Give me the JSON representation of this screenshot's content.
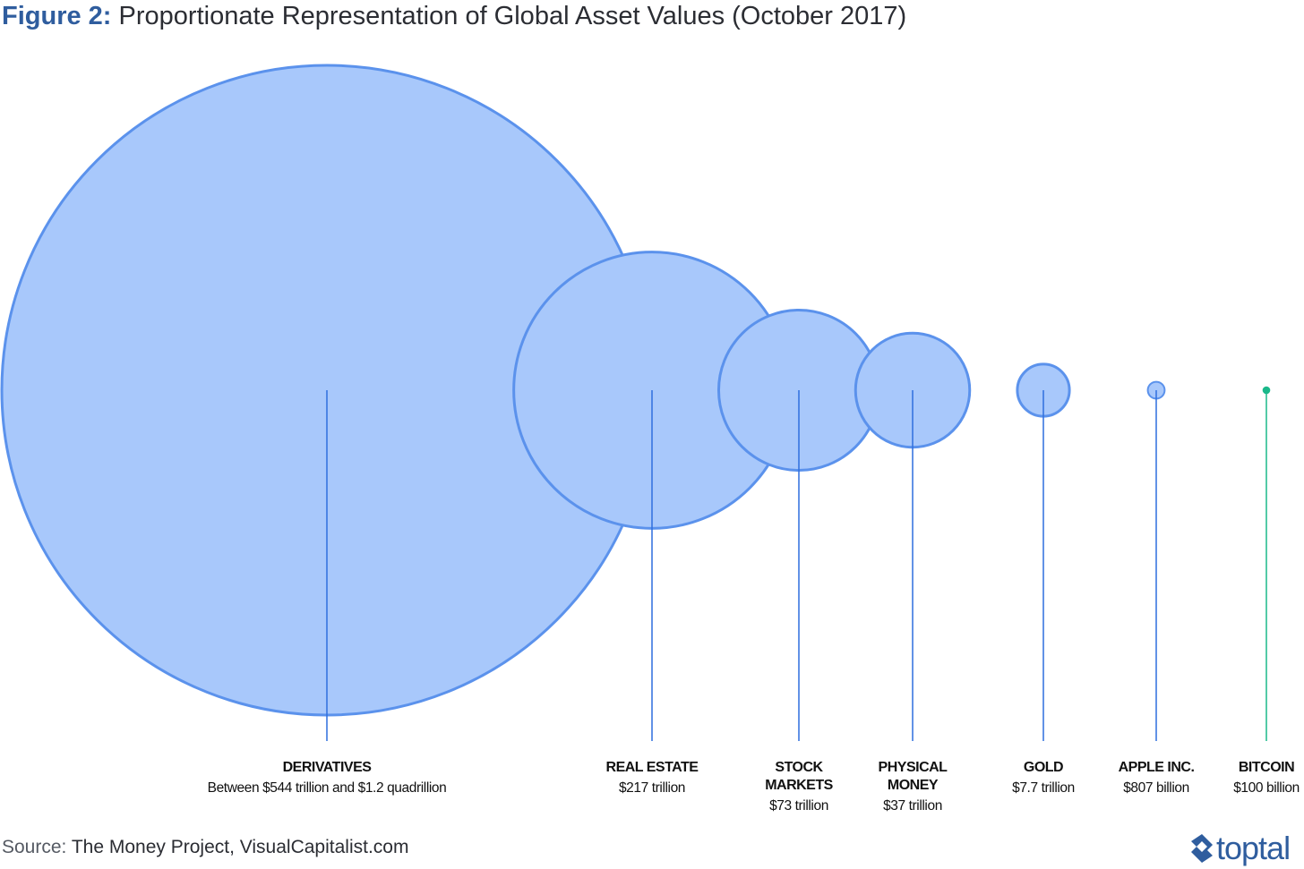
{
  "figure": {
    "label": "Figure 2:",
    "title": "Proportionate Representation of Global Asset Values (October 2017)"
  },
  "source": {
    "label": "Source:",
    "text": "The Money Project, VisualCapitalist.com"
  },
  "brand": {
    "name": "toptal",
    "color": "#2f5d9e"
  },
  "colors": {
    "bubble_fill": "#a8c8fb",
    "bubble_stroke": "#5b92ec",
    "line": "#2f6fde",
    "bitcoin": "#1ab88a"
  },
  "chart_data": {
    "type": "bubble",
    "unit": "USD",
    "items": [
      {
        "name": "DERIVATIVES",
        "label_lines": [
          "DERIVATIVES"
        ],
        "value_text": "Between $544 trillion and $1.2 quadrillion",
        "value": 1200000000000000,
        "value_min": 544000000000000
      },
      {
        "name": "REAL ESTATE",
        "label_lines": [
          "REAL ESTATE"
        ],
        "value_text": "$217 trillion",
        "value": 217000000000000
      },
      {
        "name": "STOCK MARKETS",
        "label_lines": [
          "STOCK",
          "MARKETS"
        ],
        "value_text": "$73 trillion",
        "value": 73000000000000
      },
      {
        "name": "PHYSICAL MONEY",
        "label_lines": [
          "PHYSICAL",
          "MONEY"
        ],
        "value_text": "$37 trillion",
        "value": 37000000000000
      },
      {
        "name": "GOLD",
        "label_lines": [
          "GOLD"
        ],
        "value_text": "$7.7 trillion",
        "value": 7700000000000
      },
      {
        "name": "APPLE INC.",
        "label_lines": [
          "APPLE INC."
        ],
        "value_text": "$807 billion",
        "value": 807000000000
      },
      {
        "name": "BITCOIN",
        "label_lines": [
          "BITCOIN"
        ],
        "value_text": "$100 billion",
        "value": 100000000000
      }
    ]
  }
}
